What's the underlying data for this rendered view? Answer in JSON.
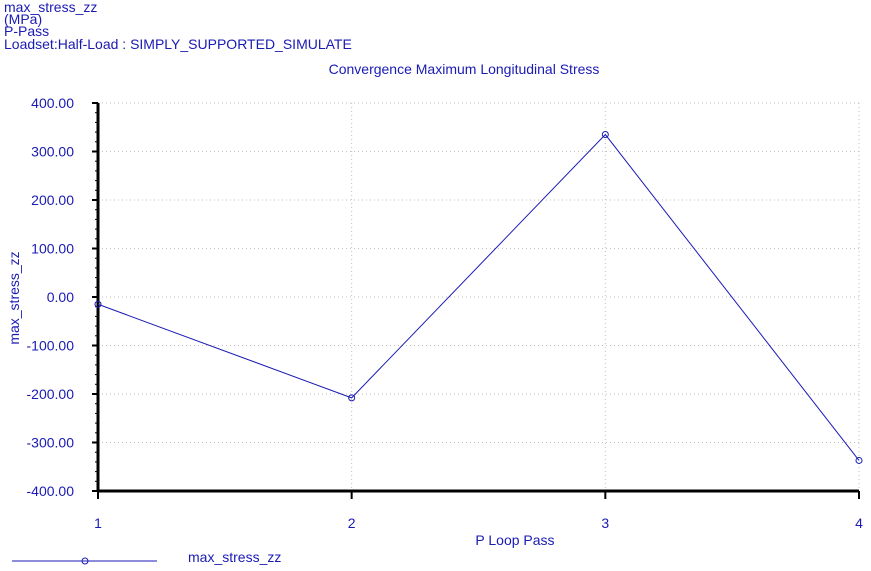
{
  "header": {
    "line1": "max_stress_zz",
    "line2": "(MPa)",
    "line3": "P-Pass",
    "line4": "Loadset:Half-Load :  SIMPLY_SUPPORTED_SIMULATE"
  },
  "colors": {
    "text": "#1a1ab4",
    "series": "#1a1ab4",
    "axis": "#000000",
    "grid": "#c0c0c0"
  },
  "chart_data": {
    "type": "line",
    "title": "Convergence Maximum Longitudinal Stress",
    "xlabel": "P Loop Pass",
    "ylabel": "max_stress_zz",
    "x": [
      1,
      2,
      3,
      4
    ],
    "series": [
      {
        "name": "max_stress_zz",
        "values": [
          -15,
          -208,
          335,
          -337
        ]
      }
    ],
    "xlim": [
      1,
      4
    ],
    "ylim": [
      -400,
      400
    ],
    "yticks": [
      400,
      300,
      200,
      100,
      0,
      -100,
      -200,
      -300,
      -400
    ],
    "yticklabels": [
      "400.00",
      "300.00",
      "200.00",
      "100.00",
      "0.00",
      "-100.00",
      "-200.00",
      "-300.00",
      "-400.00"
    ],
    "xticklabels": [
      "1",
      "2",
      "3",
      "4"
    ],
    "grid": true,
    "legend": "bottom-left"
  }
}
